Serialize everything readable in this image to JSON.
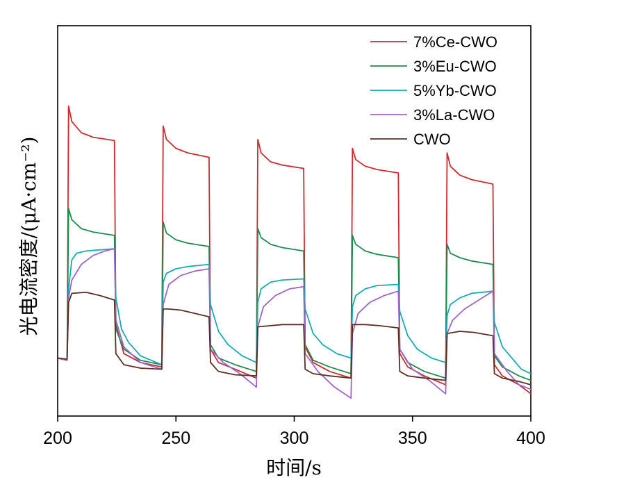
{
  "chart_data": {
    "type": "line",
    "title": "",
    "xlabel": "时间/s",
    "ylabel": "光电流密度/(μA·cm⁻²)",
    "xlim": [
      200,
      400
    ],
    "ylim": [
      -1.5,
      16
    ],
    "xticks": [
      200,
      250,
      300,
      350,
      400
    ],
    "x_tick_labels": [
      "200",
      "250",
      "300",
      "350",
      "400"
    ],
    "grid": false,
    "legend_position": "top-right",
    "light_periods": [
      [
        204.5,
        224.5
      ],
      [
        244.5,
        264.5
      ],
      [
        284.5,
        304.5
      ],
      [
        324.5,
        344.5
      ],
      [
        364.5,
        384.5
      ]
    ],
    "series": [
      {
        "name": "7%Ce-CWO",
        "color": "#cc2a2f",
        "points": [
          [
            200,
            1.1
          ],
          [
            204,
            1
          ],
          [
            204.6,
            12.4
          ],
          [
            206,
            11.7
          ],
          [
            210,
            11.2
          ],
          [
            215,
            11
          ],
          [
            224,
            10.85
          ],
          [
            224.6,
            2.6
          ],
          [
            228,
            1.3
          ],
          [
            235,
            0.9
          ],
          [
            244,
            0.7
          ],
          [
            244.6,
            11.5
          ],
          [
            246,
            10.9
          ],
          [
            250,
            10.5
          ],
          [
            255,
            10.3
          ],
          [
            264,
            10.1
          ],
          [
            264.6,
            1.5
          ],
          [
            268,
            0.9
          ],
          [
            275,
            0.6
          ],
          [
            284,
            0.2
          ],
          [
            284.6,
            10.9
          ],
          [
            286,
            10.3
          ],
          [
            290,
            9.9
          ],
          [
            295,
            9.75
          ],
          [
            304,
            9.6
          ],
          [
            304.6,
            1.6
          ],
          [
            308,
            0.9
          ],
          [
            315,
            0.5
          ],
          [
            324,
            0.2
          ],
          [
            324.6,
            10.5
          ],
          [
            326,
            10
          ],
          [
            330,
            9.7
          ],
          [
            335,
            9.55
          ],
          [
            344,
            9.4
          ],
          [
            344.6,
            1.3
          ],
          [
            348,
            0.7
          ],
          [
            355,
            0.3
          ],
          [
            364,
            -0.1
          ],
          [
            364.6,
            10.3
          ],
          [
            366,
            9.7
          ],
          [
            370,
            9.3
          ],
          [
            375,
            9.1
          ],
          [
            384,
            8.9
          ],
          [
            384.6,
            0.8
          ],
          [
            388,
            0.3
          ],
          [
            395,
            -0.1
          ],
          [
            400,
            -0.5
          ]
        ]
      },
      {
        "name": "3%Eu-CWO",
        "color": "#1f8a50",
        "points": [
          [
            200,
            1.1
          ],
          [
            204,
            1
          ],
          [
            204.6,
            7.8
          ],
          [
            206,
            7.3
          ],
          [
            210,
            6.9
          ],
          [
            215,
            6.75
          ],
          [
            224,
            6.6
          ],
          [
            224.6,
            2.4
          ],
          [
            228,
            1.5
          ],
          [
            235,
            1
          ],
          [
            244,
            0.8
          ],
          [
            244.6,
            7.2
          ],
          [
            246,
            6.7
          ],
          [
            250,
            6.4
          ],
          [
            255,
            6.25
          ],
          [
            264,
            6.1
          ],
          [
            264.6,
            1.7
          ],
          [
            268,
            1.1
          ],
          [
            275,
            0.8
          ],
          [
            284,
            0.5
          ],
          [
            284.6,
            6.9
          ],
          [
            286,
            6.5
          ],
          [
            290,
            6.2
          ],
          [
            295,
            6.05
          ],
          [
            304,
            5.9
          ],
          [
            304.6,
            1.7
          ],
          [
            308,
            1
          ],
          [
            315,
            0.7
          ],
          [
            324,
            0.4
          ],
          [
            324.6,
            6.6
          ],
          [
            326,
            6.2
          ],
          [
            330,
            5.9
          ],
          [
            335,
            5.75
          ],
          [
            344,
            5.6
          ],
          [
            344.6,
            1.5
          ],
          [
            348,
            0.9
          ],
          [
            355,
            0.5
          ],
          [
            364,
            0.2
          ],
          [
            364.6,
            6.2
          ],
          [
            366,
            5.8
          ],
          [
            370,
            5.6
          ],
          [
            375,
            5.45
          ],
          [
            384,
            5.3
          ],
          [
            384.6,
            1.2
          ],
          [
            388,
            0.7
          ],
          [
            395,
            0.3
          ],
          [
            400,
            0.1
          ]
        ]
      },
      {
        "name": "5%Yb-CWO",
        "color": "#16aab2",
        "points": [
          [
            200,
            1.1
          ],
          [
            204,
            1.05
          ],
          [
            204.6,
            4.2
          ],
          [
            206,
            5.5
          ],
          [
            208,
            5.8
          ],
          [
            212,
            5.9
          ],
          [
            218,
            5.95
          ],
          [
            224,
            6
          ],
          [
            224.6,
            3.8
          ],
          [
            227,
            2.4
          ],
          [
            230,
            1.8
          ],
          [
            235,
            1.2
          ],
          [
            244,
            0.8
          ],
          [
            244.6,
            4.5
          ],
          [
            246,
            4.9
          ],
          [
            250,
            5.1
          ],
          [
            255,
            5.2
          ],
          [
            264,
            5.3
          ],
          [
            264.6,
            3.5
          ],
          [
            268,
            2.3
          ],
          [
            272,
            1.7
          ],
          [
            278,
            1.2
          ],
          [
            284,
            0.9
          ],
          [
            284.6,
            3.6
          ],
          [
            286,
            4.2
          ],
          [
            290,
            4.5
          ],
          [
            295,
            4.6
          ],
          [
            304,
            4.65
          ],
          [
            304.6,
            3.3
          ],
          [
            308,
            2.2
          ],
          [
            312,
            1.7
          ],
          [
            318,
            1.3
          ],
          [
            324,
            1.1
          ],
          [
            324.6,
            3.4
          ],
          [
            326,
            3.9
          ],
          [
            330,
            4.2
          ],
          [
            335,
            4.35
          ],
          [
            344,
            4.4
          ],
          [
            344.6,
            3.2
          ],
          [
            348,
            2.1
          ],
          [
            352,
            1.5
          ],
          [
            358,
            1.1
          ],
          [
            364,
            0.9
          ],
          [
            364.6,
            3.0
          ],
          [
            366,
            3.5
          ],
          [
            370,
            3.8
          ],
          [
            375,
            4
          ],
          [
            384,
            4.1
          ],
          [
            384.6,
            2.7
          ],
          [
            388,
            1.6
          ],
          [
            392,
            1.1
          ],
          [
            396,
            0.6
          ],
          [
            400,
            0.4
          ]
        ]
      },
      {
        "name": "3%La-CWO",
        "color": "#9b66cc",
        "points": [
          [
            200,
            1.1
          ],
          [
            204,
            1.0
          ],
          [
            204.6,
            3.8
          ],
          [
            206,
            4.6
          ],
          [
            210,
            5.3
          ],
          [
            215,
            5.7
          ],
          [
            220,
            5.9
          ],
          [
            224,
            6
          ],
          [
            224.6,
            2.8
          ],
          [
            228,
            1.6
          ],
          [
            235,
            0.9
          ],
          [
            244,
            0.6
          ],
          [
            244.6,
            3.5
          ],
          [
            247,
            4.4
          ],
          [
            252,
            4.8
          ],
          [
            258,
            5.0
          ],
          [
            264,
            5.1
          ],
          [
            264.6,
            1.5
          ],
          [
            270,
            0.9
          ],
          [
            277,
            0.4
          ],
          [
            284,
            -0.2
          ],
          [
            284.6,
            2.5
          ],
          [
            287,
            3.4
          ],
          [
            292,
            3.9
          ],
          [
            298,
            4.2
          ],
          [
            304,
            4.3
          ],
          [
            304.6,
            1.3
          ],
          [
            310,
            0.5
          ],
          [
            317,
            -0.2
          ],
          [
            324,
            -0.7
          ],
          [
            324.6,
            2.2
          ],
          [
            327,
            3.1
          ],
          [
            332,
            3.6
          ],
          [
            338,
            3.9
          ],
          [
            344,
            4.1
          ],
          [
            344.6,
            1.5
          ],
          [
            350,
            0.6
          ],
          [
            357,
            0.1
          ],
          [
            364,
            -0.5
          ],
          [
            364.6,
            2.2
          ],
          [
            367,
            2.8
          ],
          [
            372,
            3.3
          ],
          [
            378,
            3.7
          ],
          [
            384,
            4.1
          ],
          [
            384.6,
            1.3
          ],
          [
            390,
            0.5
          ],
          [
            395,
            -0.1
          ],
          [
            400,
            -0.3
          ]
        ]
      },
      {
        "name": "CWO",
        "color": "#5a2e22",
        "points": [
          [
            200,
            1.1
          ],
          [
            204,
            1.05
          ],
          [
            204.6,
            3.6
          ],
          [
            206,
            4
          ],
          [
            212,
            4.05
          ],
          [
            218,
            3.9
          ],
          [
            224,
            3.7
          ],
          [
            224.6,
            1.3
          ],
          [
            228,
            0.8
          ],
          [
            235,
            0.65
          ],
          [
            244,
            0.6
          ],
          [
            244.6,
            3.3
          ],
          [
            247,
            3.3
          ],
          [
            252,
            3.25
          ],
          [
            258,
            3.1
          ],
          [
            264,
            2.95
          ],
          [
            264.6,
            0.9
          ],
          [
            268,
            0.5
          ],
          [
            275,
            0.35
          ],
          [
            284,
            0.3
          ],
          [
            284.6,
            2.5
          ],
          [
            290,
            2.55
          ],
          [
            295,
            2.6
          ],
          [
            304,
            2.6
          ],
          [
            304.6,
            0.6
          ],
          [
            308,
            0.4
          ],
          [
            315,
            0.3
          ],
          [
            324,
            0.2
          ],
          [
            324.6,
            2.6
          ],
          [
            330,
            2.6
          ],
          [
            336,
            2.55
          ],
          [
            344,
            2.45
          ],
          [
            344.6,
            0.5
          ],
          [
            348,
            0.3
          ],
          [
            355,
            0.2
          ],
          [
            364,
            0.1
          ],
          [
            364.6,
            2.2
          ],
          [
            370,
            2.3
          ],
          [
            376,
            2.25
          ],
          [
            384,
            2.1
          ],
          [
            384.6,
            0.4
          ],
          [
            388,
            0.2
          ],
          [
            395,
            0.05
          ],
          [
            400,
            -0.1
          ]
        ]
      }
    ]
  }
}
